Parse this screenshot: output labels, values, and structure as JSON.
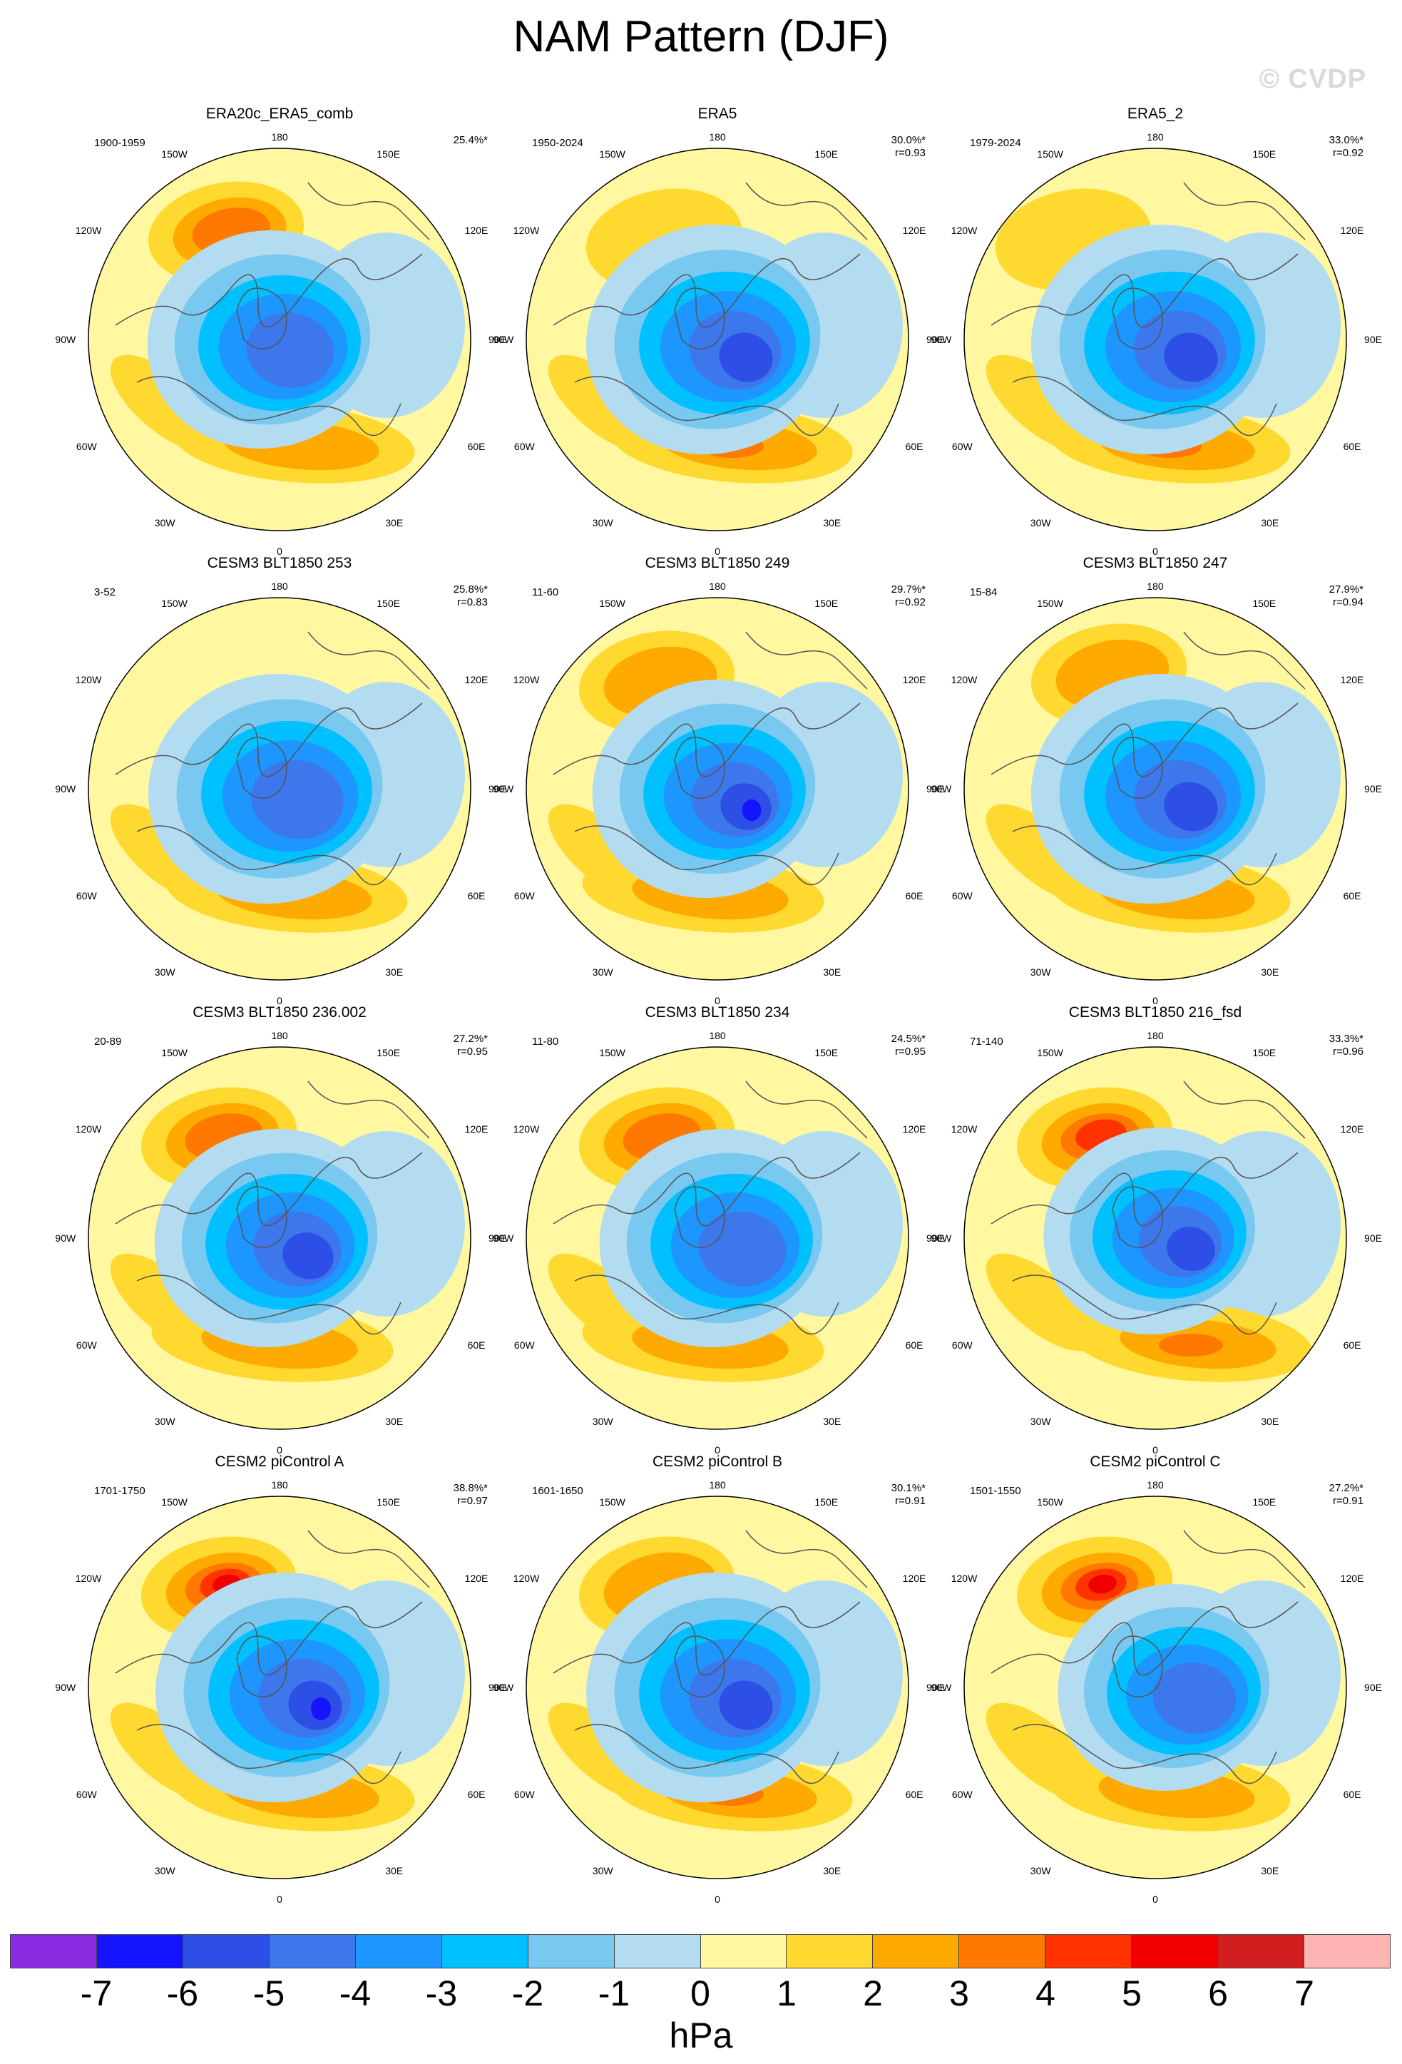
{
  "figure": {
    "title": "NAM Pattern (DJF)",
    "watermark": "© CVDP"
  },
  "longitude_labels": {
    "top": "180",
    "upper_left": "150W",
    "upper_right": "150E",
    "left_high": "120W",
    "right_high": "120E",
    "left": "90W",
    "right": "90E",
    "left_low": "60W",
    "right_low": "60E",
    "lower_left": "30W",
    "lower_right": "30E",
    "bottom": "0"
  },
  "panels": [
    {
      "title": "ERA20c_ERA5_comb",
      "period": "1900-1959",
      "pct": "25.4%*",
      "r": ""
    },
    {
      "title": "ERA5",
      "period": "1950-2024",
      "pct": "30.0%*",
      "r": "r=0.93"
    },
    {
      "title": "ERA5_2",
      "period": "1979-2024",
      "pct": "33.0%*",
      "r": "r=0.92"
    },
    {
      "title": "CESM3 BLT1850 253",
      "period": "3-52",
      "pct": "25.8%*",
      "r": "r=0.83"
    },
    {
      "title": "CESM3 BLT1850 249",
      "period": "11-60",
      "pct": "29.7%*",
      "r": "r=0.92"
    },
    {
      "title": "CESM3 BLT1850 247",
      "period": "15-84",
      "pct": "27.9%*",
      "r": "r=0.94"
    },
    {
      "title": "CESM3 BLT1850 236.002",
      "period": "20-89",
      "pct": "27.2%*",
      "r": "r=0.95"
    },
    {
      "title": "CESM3 BLT1850 234",
      "period": "11-80",
      "pct": "24.5%*",
      "r": "r=0.95"
    },
    {
      "title": "CESM3 BLT1850 216_fsd",
      "period": "71-140",
      "pct": "33.3%*",
      "r": "r=0.96"
    },
    {
      "title": "CESM2 piControl A",
      "period": "1701-1750",
      "pct": "38.8%*",
      "r": "r=0.97"
    },
    {
      "title": "CESM2 piControl B",
      "period": "1601-1650",
      "pct": "30.1%*",
      "r": "r=0.91"
    },
    {
      "title": "CESM2 piControl C",
      "period": "1501-1550",
      "pct": "27.2%*",
      "r": "r=0.91"
    }
  ],
  "colorbar": {
    "unit": "hPa",
    "ticks": [
      "-7",
      "-6",
      "-5",
      "-4",
      "-3",
      "-2",
      "-1",
      "0",
      "1",
      "2",
      "3",
      "4",
      "5",
      "6",
      "7"
    ],
    "colors": [
      "#8a2be2",
      "#1414ff",
      "#2d4fe6",
      "#3c78ec",
      "#1e96ff",
      "#00c0ff",
      "#78c8f0",
      "#b4dcf0",
      "#fff8a0",
      "#ffd830",
      "#ffaa00",
      "#ff7800",
      "#ff3200",
      "#f00000",
      "#d21e1e",
      "#ffb4b4"
    ]
  }
}
